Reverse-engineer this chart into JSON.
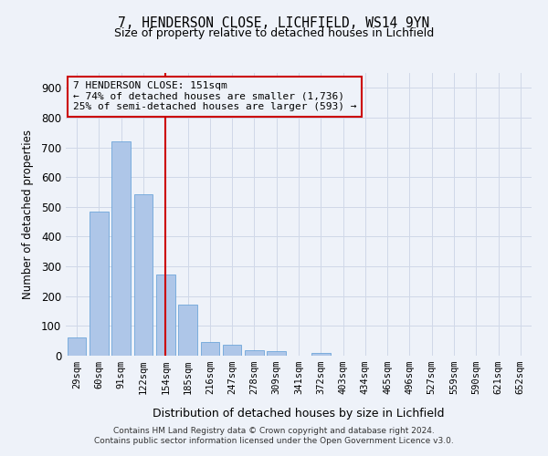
{
  "title_line1": "7, HENDERSON CLOSE, LICHFIELD, WS14 9YN",
  "title_line2": "Size of property relative to detached houses in Lichfield",
  "xlabel": "Distribution of detached houses by size in Lichfield",
  "ylabel": "Number of detached properties",
  "categories": [
    "29sqm",
    "60sqm",
    "91sqm",
    "122sqm",
    "154sqm",
    "185sqm",
    "216sqm",
    "247sqm",
    "278sqm",
    "309sqm",
    "341sqm",
    "372sqm",
    "403sqm",
    "434sqm",
    "465sqm",
    "496sqm",
    "527sqm",
    "559sqm",
    "590sqm",
    "621sqm",
    "652sqm"
  ],
  "values": [
    62,
    483,
    720,
    543,
    272,
    172,
    47,
    36,
    18,
    14,
    0,
    10,
    0,
    0,
    0,
    0,
    0,
    0,
    0,
    0,
    0
  ],
  "bar_color": "#aec6e8",
  "bar_edge_color": "#5b9bd5",
  "grid_color": "#d0d8e8",
  "vline_x": 4,
  "vline_color": "#cc0000",
  "annotation_text": "7 HENDERSON CLOSE: 151sqm\n← 74% of detached houses are smaller (1,736)\n25% of semi-detached houses are larger (593) →",
  "annotation_box_color": "#cc0000",
  "ylim": [
    0,
    950
  ],
  "yticks": [
    0,
    100,
    200,
    300,
    400,
    500,
    600,
    700,
    800,
    900
  ],
  "footer_line1": "Contains HM Land Registry data © Crown copyright and database right 2024.",
  "footer_line2": "Contains public sector information licensed under the Open Government Licence v3.0.",
  "background_color": "#eef2f9"
}
